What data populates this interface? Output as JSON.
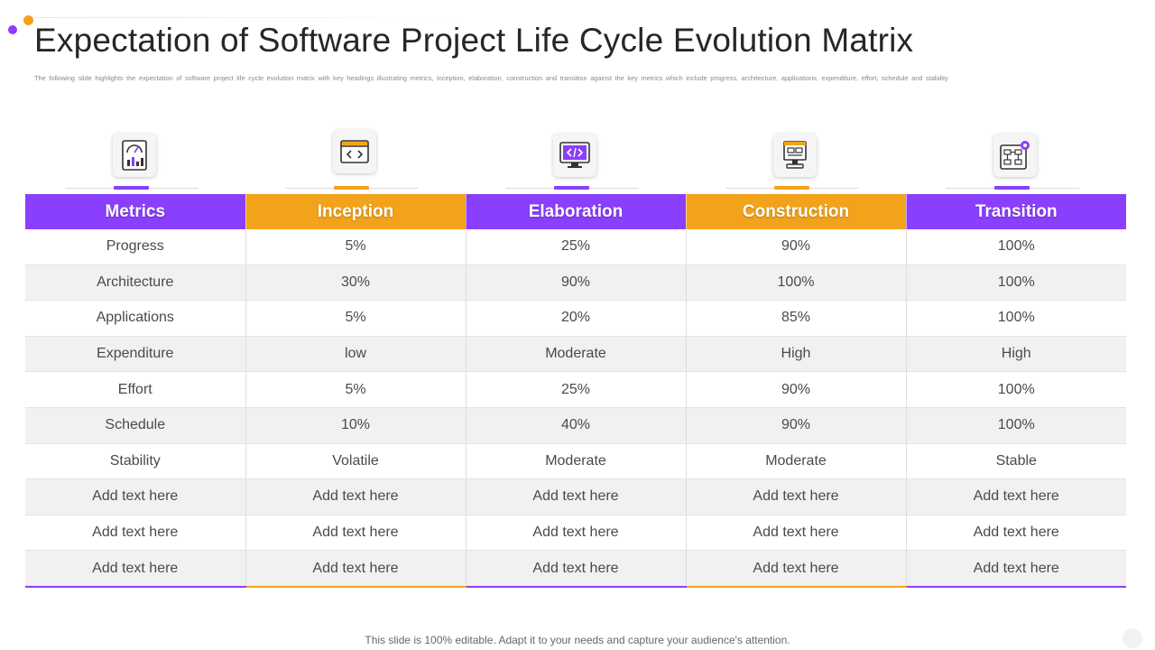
{
  "title": "Expectation of Software Project Life Cycle Evolution Matrix",
  "subtitle": "The following slide highlights the expectation of software project life cycle evolution matrix with key headings illustrating metrics, inception, elaboration, construction and transition against the key metrics which include progress, architecture, applications, expenditure, effort, schedule and stability",
  "colors": {
    "accent_purple": "#8a3ffc",
    "accent_orange": "#f2a31b"
  },
  "icons": [
    "dashboard-icon",
    "code-window-icon",
    "monitor-code-icon",
    "blueprint-computer-icon",
    "flowchart-gear-icon"
  ],
  "table": {
    "headers": [
      "Metrics",
      "Inception",
      "Elaboration",
      "Construction",
      "Transition"
    ],
    "rows": [
      [
        "Progress",
        "5%",
        "25%",
        "90%",
        "100%"
      ],
      [
        "Architecture",
        "30%",
        "90%",
        "100%",
        "100%"
      ],
      [
        "Applications",
        "5%",
        "20%",
        "85%",
        "100%"
      ],
      [
        "Expenditure",
        "low",
        "Moderate",
        "High",
        "High"
      ],
      [
        "Effort",
        "5%",
        "25%",
        "90%",
        "100%"
      ],
      [
        "Schedule",
        "10%",
        "40%",
        "90%",
        "100%"
      ],
      [
        "Stability",
        "Volatile",
        "Moderate",
        "Moderate",
        "Stable"
      ],
      [
        "Add text here",
        "Add text here",
        "Add text here",
        "Add text here",
        "Add text here"
      ],
      [
        "Add text here",
        "Add text here",
        "Add text here",
        "Add text here",
        "Add text here"
      ],
      [
        "Add text here",
        "Add text here",
        "Add text here",
        "Add text here",
        "Add text here"
      ]
    ]
  },
  "footer": "This slide is 100% editable. Adapt it to your needs and capture your audience's attention."
}
